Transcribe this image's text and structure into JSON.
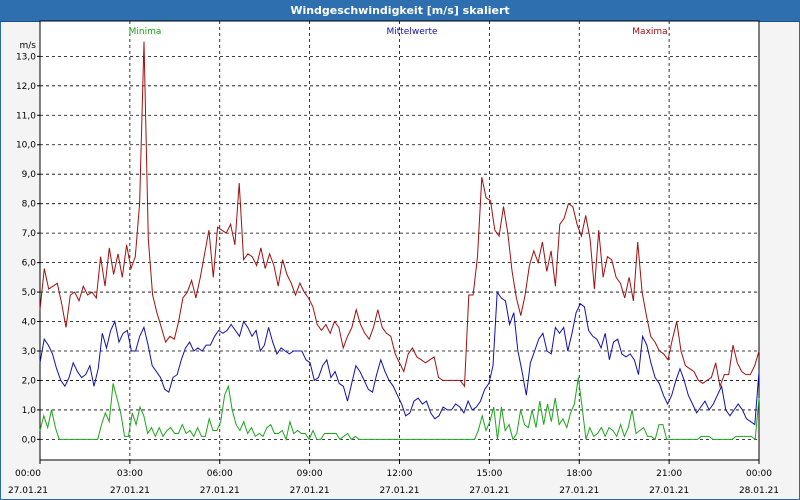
{
  "window": {
    "title": "Windgeschwindigkeit [m/s] skaliert"
  },
  "chart_data": {
    "type": "line",
    "title": "Windgeschwindigkeit [m/s] skaliert",
    "ylabel": "m/s",
    "xlabel": "",
    "ylim": [
      -0.7,
      14.2
    ],
    "xlim": [
      0,
      24
    ],
    "yticks": [
      "0,0",
      "1,0",
      "2,0",
      "3,0",
      "4,0",
      "5,0",
      "6,0",
      "7,0",
      "8,0",
      "9,0",
      "10,0",
      "11,0",
      "12,0",
      "13,0"
    ],
    "xticks": [
      {
        "time": "00:00",
        "date": "27.01.21"
      },
      {
        "time": "03:00",
        "date": "27.01.21"
      },
      {
        "time": "06:00",
        "date": "27.01.21"
      },
      {
        "time": "09:00",
        "date": "27.01.21"
      },
      {
        "time": "12:00",
        "date": "27.01.21"
      },
      {
        "time": "15:00",
        "date": "27.01.21"
      },
      {
        "time": "18:00",
        "date": "27.01.21"
      },
      {
        "time": "21:00",
        "date": "27.01.21"
      },
      {
        "time": "00:00",
        "date": "28.01.21"
      }
    ],
    "grid": true,
    "legend_position": "top",
    "x_step_hours": 0.1667,
    "series": [
      {
        "name": "Minima",
        "color": "#1aa51a",
        "values": [
          0.3,
          0.8,
          0.4,
          1.0,
          0.4,
          0.0,
          0.0,
          0.0,
          0.0,
          0.0,
          0.0,
          0.0,
          0.0,
          0.0,
          0.0,
          0.0,
          0.5,
          0.9,
          0.6,
          1.9,
          1.4,
          0.9,
          0.1,
          0.1,
          0.9,
          0.5,
          1.1,
          0.8,
          0.2,
          0.4,
          0.1,
          0.4,
          0.1,
          0.3,
          0.4,
          0.2,
          0.2,
          0.5,
          0.2,
          0.3,
          0.1,
          0.4,
          0.1,
          0.1,
          0.7,
          0.3,
          0.3,
          0.6,
          1.5,
          1.8,
          1.0,
          0.5,
          0.3,
          0.6,
          0.2,
          0.4,
          0.1,
          0.2,
          0.1,
          0.4,
          0.5,
          0.2,
          0.2,
          0.3,
          0.0,
          0.6,
          0.2,
          0.3,
          0.2,
          0.2,
          0.0,
          0.3,
          0.0,
          0.0,
          0.2,
          0.2,
          0.2,
          0.2,
          0.0,
          0.1,
          0.2,
          0.0,
          0.1,
          0.0,
          0.0,
          0.0,
          0.0,
          0.0,
          0.0,
          0.0,
          0.0,
          0.0,
          0.0,
          0.0,
          0.0,
          0.0,
          0.0,
          0.0,
          0.0,
          0.0,
          0.0,
          0.0,
          0.0,
          0.0,
          0.0,
          0.0,
          0.0,
          0.0,
          0.0,
          0.0,
          0.0,
          0.0,
          0.0,
          0.0,
          0.3,
          0.8,
          0.3,
          0.6,
          1.1,
          0.0,
          1.1,
          0.3,
          0.5,
          0.0,
          0.2,
          1.0,
          0.5,
          0.4,
          1.0,
          0.4,
          1.3,
          0.5,
          1.2,
          0.6,
          1.4,
          0.5,
          0.7,
          0.4,
          0.9,
          1.2,
          2.1,
          1.1,
          0.0,
          0.4,
          0.1,
          0.2,
          0.4,
          0.1,
          0.4,
          0.3,
          0.1,
          0.5,
          0.1,
          0.4,
          1.0,
          0.2,
          0.3,
          0.4,
          0.1,
          0.1,
          0.0,
          0.5,
          0.5,
          0.0,
          0.0,
          0.0,
          0.0,
          0.0,
          0.0,
          0.0,
          0.0,
          0.0,
          0.1,
          0.1,
          0.1,
          0.0,
          0.0,
          0.0,
          0.0,
          0.0,
          0.0,
          0.1,
          0.1,
          0.1,
          0.1,
          0.1,
          0.0,
          1.4
        ]
      },
      {
        "name": "Mittelwerte",
        "color": "#1010b0",
        "values": [
          2.6,
          3.4,
          3.2,
          2.9,
          2.4,
          2.0,
          1.8,
          2.1,
          2.6,
          2.3,
          2.1,
          2.2,
          2.5,
          1.8,
          2.4,
          3.6,
          3.1,
          3.7,
          4.0,
          3.3,
          3.6,
          3.7,
          3.0,
          3.0,
          3.5,
          3.8,
          3.2,
          2.5,
          2.3,
          2.1,
          1.7,
          1.6,
          2.1,
          2.2,
          2.7,
          3.1,
          3.3,
          3.0,
          3.1,
          3.0,
          3.2,
          3.2,
          3.5,
          3.7,
          3.6,
          3.7,
          3.9,
          3.7,
          3.5,
          4.0,
          3.8,
          3.5,
          3.7,
          3.0,
          3.2,
          3.8,
          3.3,
          2.9,
          3.1,
          3.0,
          2.9,
          3.0,
          3.0,
          3.0,
          2.7,
          2.6,
          2.0,
          2.1,
          2.5,
          2.7,
          2.1,
          2.3,
          1.9,
          1.8,
          1.3,
          1.9,
          2.5,
          2.3,
          2.0,
          1.7,
          1.6,
          2.2,
          2.7,
          2.3,
          2.0,
          1.8,
          1.5,
          1.2,
          0.8,
          0.9,
          1.3,
          1.4,
          1.2,
          1.3,
          0.9,
          0.7,
          0.8,
          1.1,
          1.0,
          1.0,
          1.2,
          1.1,
          0.9,
          1.3,
          1.0,
          1.1,
          1.3,
          1.7,
          1.9,
          2.5,
          5.0,
          4.8,
          4.7,
          3.9,
          4.3,
          3.0,
          2.3,
          1.5,
          2.6,
          3.0,
          3.4,
          3.6,
          3.0,
          2.9,
          3.8,
          3.6,
          3.8,
          3.0,
          3.6,
          4.3,
          4.6,
          4.5,
          3.7,
          3.5,
          3.4,
          3.1,
          3.6,
          2.7,
          3.3,
          3.4,
          2.9,
          2.8,
          2.9,
          2.7,
          2.2,
          3.5,
          3.2,
          2.6,
          2.1,
          1.9,
          1.5,
          1.2,
          1.5,
          2.0,
          2.4,
          2.0,
          1.5,
          1.2,
          0.9,
          1.1,
          1.3,
          1.0,
          1.2,
          1.5,
          1.8,
          1.0,
          0.8,
          1.0,
          1.2,
          1.0,
          0.7,
          0.6,
          0.5,
          2.3
        ]
      },
      {
        "name": "Maxima",
        "color": "#a01010",
        "values": [
          4.4,
          5.8,
          5.1,
          5.2,
          5.3,
          4.6,
          3.8,
          4.9,
          5.0,
          4.7,
          5.2,
          4.9,
          5.0,
          4.8,
          6.2,
          5.2,
          6.5,
          5.6,
          6.3,
          5.5,
          6.6,
          5.8,
          6.2,
          8.0,
          13.5,
          6.8,
          4.9,
          4.3,
          3.8,
          3.3,
          3.5,
          3.4,
          4.0,
          4.8,
          5.0,
          5.4,
          4.8,
          5.5,
          6.3,
          7.1,
          5.5,
          7.2,
          7.1,
          7.0,
          7.3,
          6.6,
          8.7,
          6.1,
          6.3,
          6.2,
          5.9,
          6.5,
          5.8,
          6.3,
          5.9,
          5.2,
          6.1,
          5.6,
          5.3,
          4.9,
          5.3,
          5.0,
          4.8,
          4.5,
          3.9,
          3.7,
          3.9,
          3.6,
          4.0,
          3.8,
          3.1,
          3.5,
          3.8,
          4.4,
          3.9,
          3.6,
          3.4,
          3.8,
          4.4,
          3.8,
          3.6,
          3.5,
          2.9,
          2.6,
          2.3,
          2.9,
          3.1,
          2.8,
          2.7,
          2.6,
          2.7,
          2.8,
          2.1,
          2.0,
          2.0,
          2.0,
          2.0,
          2.0,
          1.8,
          4.9,
          4.9,
          6.2,
          8.9,
          8.2,
          8.1,
          7.1,
          6.9,
          7.9,
          7.0,
          5.7,
          4.8,
          4.2,
          4.9,
          5.9,
          6.4,
          6.0,
          6.7,
          5.7,
          6.4,
          5.2,
          7.3,
          7.5,
          8.0,
          7.9,
          7.3,
          6.9,
          7.6,
          6.8,
          5.1,
          7.1,
          5.5,
          6.2,
          6.1,
          5.5,
          5.3,
          4.8,
          5.5,
          4.7,
          6.7,
          5.0,
          4.2,
          3.5,
          3.3,
          3.0,
          2.9,
          2.7,
          3.4,
          4.0,
          3.0,
          2.5,
          2.4,
          2.3,
          2.0,
          1.9,
          2.0,
          2.1,
          2.6,
          1.8,
          2.2,
          2.2,
          3.2,
          2.6,
          2.3,
          2.2,
          2.2,
          2.5,
          3.0
        ]
      }
    ]
  }
}
